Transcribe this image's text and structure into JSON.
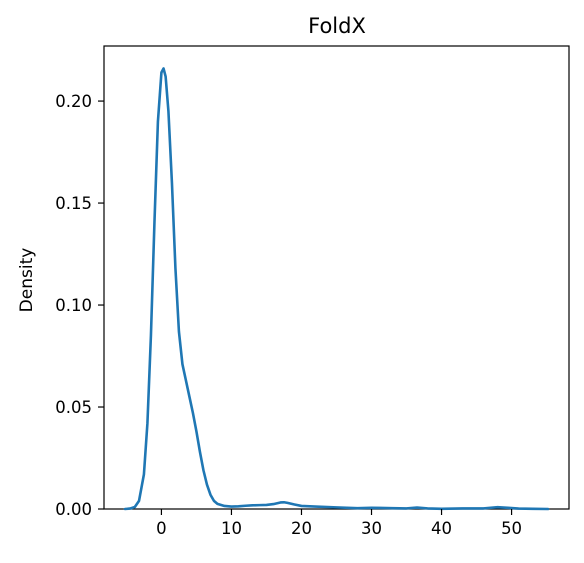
{
  "chart_data": {
    "type": "line",
    "title": "FoldX",
    "xlabel": "",
    "ylabel": "Density",
    "xlim": [
      -8.2,
      58.2
    ],
    "ylim": [
      0,
      0.227
    ],
    "xticks": [
      0,
      10,
      20,
      30,
      40,
      50
    ],
    "xtick_labels": [
      "0",
      "10",
      "20",
      "30",
      "40",
      "50"
    ],
    "yticks": [
      0.0,
      0.05,
      0.1,
      0.15,
      0.2
    ],
    "ytick_labels": [
      "0.00",
      "0.05",
      "0.10",
      "0.15",
      "0.20"
    ],
    "grid": false,
    "legend": "none",
    "series": [
      {
        "color": "#1f77b4",
        "x": [
          -5.2,
          -4.5,
          -3.8,
          -3.2,
          -2.5,
          -2.0,
          -1.5,
          -1.0,
          -0.5,
          0.0,
          0.3,
          0.6,
          1.0,
          1.5,
          2.0,
          2.5,
          3.0,
          3.5,
          4.0,
          4.5,
          5.0,
          5.5,
          6.0,
          6.5,
          7.0,
          7.5,
          8.0,
          9.0,
          10.0,
          11.0,
          12.0,
          13.0,
          14.0,
          15.0,
          16.0,
          17.0,
          17.5,
          18.0,
          19.0,
          20.0,
          22.0,
          25.0,
          28.0,
          30.0,
          33.0,
          35.0,
          36.5,
          38.0,
          40.0,
          43.0,
          46.0,
          48.0,
          49.5,
          51.0,
          53.0,
          55.2
        ],
        "y": [
          0.0,
          0.0002,
          0.001,
          0.004,
          0.017,
          0.042,
          0.085,
          0.14,
          0.19,
          0.214,
          0.216,
          0.212,
          0.195,
          0.16,
          0.118,
          0.087,
          0.071,
          0.063,
          0.055,
          0.047,
          0.038,
          0.028,
          0.019,
          0.012,
          0.007,
          0.004,
          0.0025,
          0.0015,
          0.0012,
          0.0013,
          0.0016,
          0.0018,
          0.0019,
          0.002,
          0.0024,
          0.0032,
          0.0033,
          0.003,
          0.0022,
          0.0015,
          0.0012,
          0.0008,
          0.0004,
          0.0006,
          0.0004,
          0.0003,
          0.0007,
          0.0003,
          0.0001,
          0.0003,
          0.0003,
          0.0009,
          0.0006,
          0.0002,
          0.0001,
          0.0
        ]
      }
    ]
  }
}
